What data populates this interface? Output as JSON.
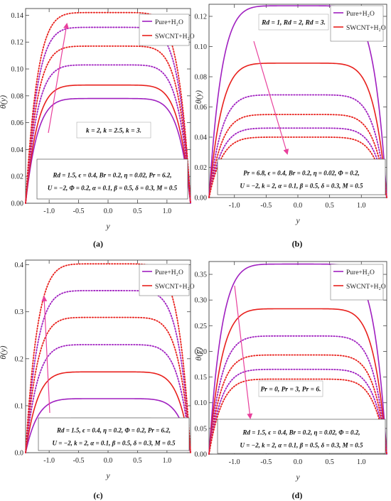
{
  "panels": [
    {
      "letter": "(a)",
      "chart_data": {
        "type": "line",
        "xlabel": "y",
        "ylabel": "θ(y)",
        "xlim": [
          -1.4,
          1.4
        ],
        "ylim": [
          0,
          0.145
        ],
        "xticks": [
          -1.0,
          -0.5,
          0.0,
          0.5,
          1.0
        ],
        "xtick_labels": [
          "-1.0",
          "-0.5",
          "0.0",
          "0.5",
          "1.0"
        ],
        "yticks": [
          0.0,
          0.02,
          0.04,
          0.06,
          0.08,
          0.1,
          0.12,
          0.14
        ],
        "ytick_labels": [
          "0.00",
          "0.02",
          "0.04",
          "0.06",
          "0.08",
          "0.10",
          "0.12",
          "0.14"
        ],
        "legend": {
          "placement": "top-right",
          "entries": [
            "Pure+H₂O",
            "SWCNT+H₂O"
          ]
        },
        "varied_label": "k = 2, k = 2.5, k = 3.",
        "params": [
          "Rd = 1.5, ϵ = 0.4, Br = 0.2, η = 0.02, Pr = 6.2,",
          "U = −2, Φ = 0.2, α = 0.1, β = 0.5, δ = 0.3, M = 0.5"
        ],
        "arrow": "up",
        "series": [
          {
            "fluid": "Pure+H₂O",
            "style": "solid",
            "color": "#a020c0",
            "peak": 0.078
          },
          {
            "fluid": "SWCNT+H₂O",
            "style": "solid",
            "color": "#e8201c",
            "peak": 0.088
          },
          {
            "fluid": "Pure+H₂O",
            "style": "dotted",
            "color": "#a020c0",
            "peak": 0.103
          },
          {
            "fluid": "SWCNT+H₂O",
            "style": "dotted",
            "color": "#e8201c",
            "peak": 0.117
          },
          {
            "fluid": "Pure+H₂O",
            "style": "dotted",
            "color": "#a020c0",
            "peak": 0.131
          },
          {
            "fluid": "SWCNT+H₂O",
            "style": "dotted",
            "color": "#e8201c",
            "peak": 0.142
          }
        ]
      }
    },
    {
      "letter": "(b)",
      "chart_data": {
        "type": "line",
        "xlabel": "y",
        "ylabel": "θ(y)",
        "xlim": [
          -1.4,
          1.4
        ],
        "ylim": [
          0,
          0.128
        ],
        "xticks": [
          -1.0,
          -0.5,
          0.0,
          0.5,
          1.0
        ],
        "xtick_labels": [
          "-1.0",
          "-0.5",
          "0.0",
          "0.5",
          "1.0"
        ],
        "yticks": [
          0.0,
          0.02,
          0.04,
          0.06,
          0.08,
          0.1,
          0.12
        ],
        "ytick_labels": [
          "0.00",
          "0.02",
          "0.04",
          "0.06",
          "0.08",
          "0.10",
          "0.12"
        ],
        "legend": {
          "placement": "top-right",
          "entries": [
            "Pure+H₂O",
            "SWCNT+H₂O"
          ]
        },
        "varied_label": "Rd = 1, Rd = 2, Rd = 3.",
        "params": [
          "Pr = 6.8, ϵ = 0.4, Br = 0.2, η = 0.02, Φ = 0.2,",
          "U = −2, k = 2, α = 0.1, β = 0.5, δ = 0.3, M = 0.5"
        ],
        "arrow": "down",
        "series": [
          {
            "fluid": "Pure+H₂O",
            "style": "solid",
            "color": "#a020c0",
            "peak": 0.127
          },
          {
            "fluid": "SWCNT+H₂O",
            "style": "solid",
            "color": "#e8201c",
            "peak": 0.089
          },
          {
            "fluid": "Pure+H₂O",
            "style": "dotted",
            "color": "#a020c0",
            "peak": 0.068
          },
          {
            "fluid": "SWCNT+H₂O",
            "style": "dotted",
            "color": "#e8201c",
            "peak": 0.055
          },
          {
            "fluid": "Pure+H₂O",
            "style": "dotted",
            "color": "#a020c0",
            "peak": 0.046
          },
          {
            "fluid": "SWCNT+H₂O",
            "style": "dotted",
            "color": "#e8201c",
            "peak": 0.04
          }
        ]
      }
    },
    {
      "letter": "(c)",
      "chart_data": {
        "type": "line",
        "xlabel": "y",
        "ylabel": "θ(y)",
        "xlim": [
          -1.4,
          1.4
        ],
        "ylim": [
          0,
          0.41
        ],
        "xticks": [
          -1.0,
          -0.5,
          0.0,
          0.5,
          1.0
        ],
        "xtick_labels": [
          "-1.0",
          "-0.5",
          "0.0",
          "0.5",
          "1.0"
        ],
        "yticks": [
          0.0,
          0.1,
          0.2,
          0.3,
          0.4
        ],
        "ytick_labels": [
          "0.0",
          "0.1",
          "0.2",
          "0.3",
          "0.4"
        ],
        "legend": {
          "placement": "top-right",
          "entries": [
            "Pure+H₂O",
            "SWCNT+H₂O"
          ]
        },
        "varied_label": "Br = 0.2, Br = 0.3, Br = 0.4.",
        "params": [
          "Rd = 1.5, ϵ = 0.4, η = 0.2, Φ = 0.2, Pr = 6.2,",
          "U = −2, k = 2, α = 0.1, β = 0.5, δ = 0.3, M = 0.5"
        ],
        "arrow": "up",
        "series": [
          {
            "fluid": "Pure+H₂O",
            "style": "solid",
            "color": "#a020c0",
            "peak": 0.115
          },
          {
            "fluid": "SWCNT+H₂O",
            "style": "solid",
            "color": "#e8201c",
            "peak": 0.172
          },
          {
            "fluid": "Pure+H₂O",
            "style": "dotted",
            "color": "#a020c0",
            "peak": 0.23
          },
          {
            "fluid": "SWCNT+H₂O",
            "style": "dotted",
            "color": "#e8201c",
            "peak": 0.288
          },
          {
            "fluid": "Pure+H₂O",
            "style": "dotted",
            "color": "#a020c0",
            "peak": 0.345
          },
          {
            "fluid": "SWCNT+H₂O",
            "style": "dotted",
            "color": "#e8201c",
            "peak": 0.402
          }
        ]
      }
    },
    {
      "letter": "(d)",
      "chart_data": {
        "type": "line",
        "xlabel": "y",
        "ylabel": "θ(y)",
        "xlim": [
          -1.4,
          1.4
        ],
        "ylim": [
          0,
          0.375
        ],
        "xticks": [
          -1.0,
          -0.5,
          0.0,
          0.5,
          1.0
        ],
        "xtick_labels": [
          "-1.0",
          "-0.5",
          "0.0",
          "0.5",
          "1.0"
        ],
        "yticks": [
          0.0,
          0.05,
          0.1,
          0.15,
          0.2,
          0.25,
          0.3,
          0.35
        ],
        "ytick_labels": [
          "0.00",
          "0.05",
          "0.10",
          "0.15",
          "0.20",
          "0.25",
          "0.30",
          "0.35"
        ],
        "legend": {
          "placement": "top-right",
          "entries": [
            "Pure+H₂O",
            "SWCNT+H₂O"
          ]
        },
        "varied_label": "Pr = 0, Pr = 3, Pr = 6.",
        "params": [
          "Rd = 1.5, ϵ = 0.4, Br = 0.2, η = 0.02, Φ = 0.2,",
          "U = −2, k = 2, α = 0.1, β = 0.5, δ = 0.3, M = 0.5"
        ],
        "arrow": "down",
        "series": [
          {
            "fluid": "Pure+H₂O",
            "style": "solid",
            "color": "#a020c0",
            "peak": 0.37
          },
          {
            "fluid": "SWCNT+H₂O",
            "style": "solid",
            "color": "#e8201c",
            "peak": 0.283
          },
          {
            "fluid": "Pure+H₂O",
            "style": "dotted",
            "color": "#a020c0",
            "peak": 0.23
          },
          {
            "fluid": "SWCNT+H₂O",
            "style": "dotted",
            "color": "#e8201c",
            "peak": 0.193
          },
          {
            "fluid": "Pure+H₂O",
            "style": "dotted",
            "color": "#a020c0",
            "peak": 0.165
          },
          {
            "fluid": "SWCNT+H₂O",
            "style": "dotted",
            "color": "#e8201c",
            "peak": 0.146
          }
        ]
      }
    }
  ]
}
